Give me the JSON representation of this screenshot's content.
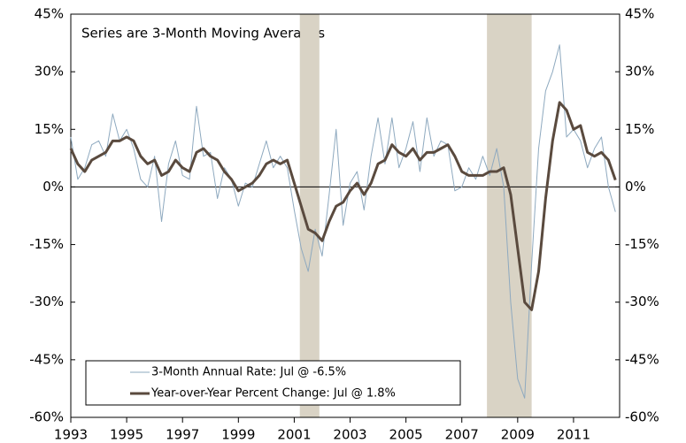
{
  "chart_data": {
    "type": "line",
    "annotation": "Series are 3-Month Moving Averages",
    "x": [
      1993,
      1993.25,
      1993.5,
      1993.75,
      1994,
      1994.25,
      1994.5,
      1994.75,
      1995,
      1995.25,
      1995.5,
      1995.75,
      1996,
      1996.25,
      1996.5,
      1996.75,
      1997,
      1997.25,
      1997.5,
      1997.75,
      1998,
      1998.25,
      1998.5,
      1998.75,
      1999,
      1999.25,
      1999.5,
      1999.75,
      2000,
      2000.25,
      2000.5,
      2000.75,
      2001,
      2001.25,
      2001.5,
      2001.75,
      2002,
      2002.25,
      2002.5,
      2002.75,
      2003,
      2003.25,
      2003.5,
      2003.75,
      2004,
      2004.25,
      2004.5,
      2004.75,
      2005,
      2005.25,
      2005.5,
      2005.75,
      2006,
      2006.25,
      2006.5,
      2006.75,
      2007,
      2007.25,
      2007.5,
      2007.75,
      2008,
      2008.25,
      2008.5,
      2008.75,
      2009,
      2009.25,
      2009.5,
      2009.75,
      2010,
      2010.25,
      2010.5,
      2010.75,
      2011,
      2011.25,
      2011.5,
      2011.75,
      2012,
      2012.25,
      2012.5
    ],
    "series": [
      {
        "name": "3-Month Annual Rate: Jul @ -6.5%",
        "color": "#8ea9bf",
        "width": 1,
        "values": [
          13,
          2,
          5,
          11,
          12,
          8,
          19,
          12,
          15,
          10,
          2,
          0,
          8,
          -9,
          6,
          12,
          3,
          2,
          21,
          8,
          9,
          -3,
          5,
          2,
          -5,
          1,
          0,
          6,
          12,
          5,
          8,
          5,
          -6,
          -16,
          -22,
          -11,
          -18,
          -2,
          15,
          -10,
          1,
          4,
          -6,
          8,
          18,
          6,
          18,
          5,
          10,
          17,
          4,
          18,
          8,
          12,
          11,
          -1,
          0,
          5,
          2,
          8,
          3,
          10,
          0,
          -30,
          -50,
          -55,
          -20,
          10,
          25,
          30,
          37,
          13,
          15,
          12,
          5,
          10,
          13,
          0,
          -6.5
        ]
      },
      {
        "name": "Year-over-Year Percent Change: Jul @ 1.8%",
        "color": "#5a4a3e",
        "width": 3,
        "values": [
          10,
          6,
          4,
          7,
          8,
          9,
          12,
          12,
          13,
          12,
          8,
          6,
          7,
          3,
          4,
          7,
          5,
          4,
          9,
          10,
          8,
          7,
          4,
          2,
          -1,
          0,
          1,
          3,
          6,
          7,
          6,
          7,
          1,
          -5,
          -11,
          -12,
          -14,
          -9,
          -5,
          -4,
          -1,
          1,
          -2,
          1,
          6,
          7,
          11,
          9,
          8,
          10,
          7,
          9,
          9,
          10,
          11,
          8,
          4,
          3,
          3,
          3,
          4,
          4,
          5,
          -2,
          -16,
          -30,
          -32,
          -22,
          -3,
          12,
          22,
          20,
          15,
          16,
          9,
          8,
          9,
          7,
          1.8
        ]
      }
    ],
    "shaded_regions": [
      [
        2001.2,
        2001.9
      ],
      [
        2007.9,
        2009.5
      ]
    ],
    "shade_color": "#d9d3c5",
    "xlim": [
      1993,
      2012.65
    ],
    "xticks": [
      1993,
      1995,
      1997,
      1999,
      2001,
      2003,
      2005,
      2007,
      2009,
      2011
    ],
    "ylim": [
      -60,
      45
    ],
    "yticks": [
      {
        "value": -60,
        "label": "-60%"
      },
      {
        "value": -45,
        "label": "-45%"
      },
      {
        "value": -30,
        "label": "-30%"
      },
      {
        "value": -15,
        "label": "-15%"
      },
      {
        "value": 0,
        "label": "0%"
      },
      {
        "value": 15,
        "label": "15%"
      },
      {
        "value": 30,
        "label": "30%"
      },
      {
        "value": 45,
        "label": "45%"
      }
    ],
    "y2lim": [
      -60,
      45
    ],
    "y2ticks": [
      {
        "value": -60,
        "label": "-60%"
      },
      {
        "value": -45,
        "label": "-45%"
      },
      {
        "value": -30,
        "label": "-30%"
      },
      {
        "value": -15,
        "label": "-15%"
      },
      {
        "value": 0,
        "label": "0%"
      },
      {
        "value": 15,
        "label": "15%"
      },
      {
        "value": 30,
        "label": "30%"
      },
      {
        "value": 45,
        "label": "45%"
      }
    ],
    "legend": "lower left"
  }
}
